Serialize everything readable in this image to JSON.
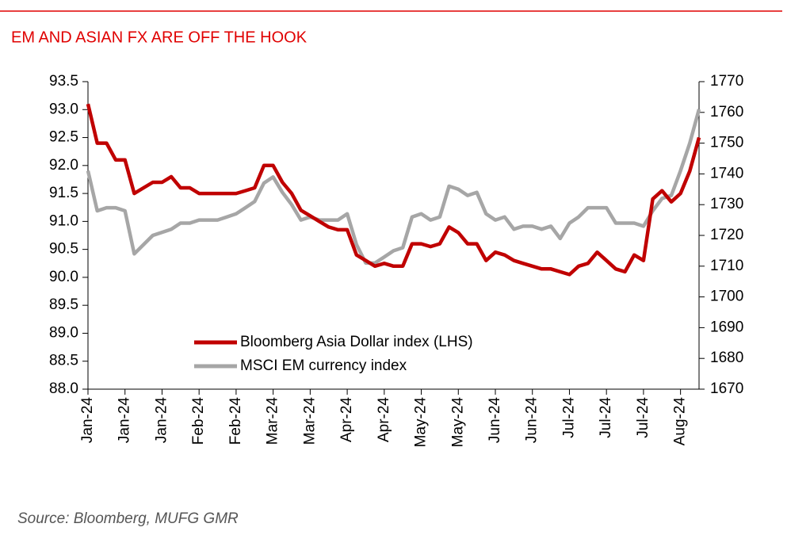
{
  "chart_data": {
    "type": "line",
    "title": "EM AND ASIAN FX ARE OFF THE HOOK",
    "source": "Source: Bloomberg, MUFG GMR",
    "categories": [
      "Jan-24",
      null,
      null,
      null,
      "Jan-24",
      null,
      null,
      null,
      "Jan-24",
      null,
      null,
      null,
      "Feb-24",
      null,
      null,
      null,
      "Feb-24",
      null,
      null,
      null,
      "Mar-24",
      null,
      null,
      null,
      "Mar-24",
      null,
      null,
      null,
      "Apr-24",
      null,
      null,
      null,
      "Apr-24",
      null,
      null,
      null,
      "May-24",
      null,
      null,
      null,
      "May-24",
      null,
      null,
      null,
      "Jun-24",
      null,
      null,
      null,
      "Jun-24",
      null,
      null,
      null,
      "Jul-24",
      null,
      null,
      null,
      "Jul-24",
      null,
      null,
      null,
      "Jul-24",
      null,
      null,
      null,
      "Aug-24",
      null,
      null
    ],
    "series": [
      {
        "name": "Bloomberg Asia Dollar index (LHS)",
        "color": "#c00000",
        "axis": "y",
        "values": [
          93.1,
          92.4,
          92.4,
          92.1,
          92.1,
          91.5,
          91.6,
          91.7,
          91.7,
          91.8,
          91.6,
          91.6,
          91.5,
          91.5,
          91.5,
          91.5,
          91.5,
          91.55,
          91.6,
          92.0,
          92.0,
          91.7,
          91.5,
          91.2,
          91.1,
          91.0,
          90.9,
          90.85,
          90.85,
          90.4,
          90.3,
          90.2,
          90.25,
          90.2,
          90.2,
          90.6,
          90.6,
          90.55,
          90.6,
          90.9,
          90.8,
          90.6,
          90.6,
          90.3,
          90.45,
          90.4,
          90.3,
          90.25,
          90.2,
          90.15,
          90.15,
          90.1,
          90.05,
          90.2,
          90.25,
          90.45,
          90.3,
          90.15,
          90.1,
          90.4,
          90.3,
          91.4,
          91.55,
          91.35,
          91.5,
          91.9,
          92.5
        ]
      },
      {
        "name": "MSCI EM currency index",
        "color": "#a6a6a6",
        "axis": "y2",
        "values": [
          1741,
          1728,
          1729,
          1729,
          1728,
          1714,
          1717,
          1720,
          1721,
          1722,
          1724,
          1724,
          1725,
          1725,
          1725,
          1726,
          1727,
          1729,
          1731,
          1737,
          1739,
          1734,
          1730,
          1725,
          1726,
          1725,
          1725,
          1725,
          1727,
          1717,
          1711,
          1711,
          1713,
          1715,
          1716,
          1726,
          1727,
          1725,
          1726,
          1736,
          1735,
          1733,
          1734,
          1727,
          1725,
          1726,
          1722,
          1723,
          1723,
          1722,
          1723,
          1719,
          1724,
          1726,
          1729,
          1729,
          1729,
          1724,
          1724,
          1724,
          1723,
          1728,
          1732,
          1733,
          1741,
          1750,
          1761
        ]
      }
    ],
    "ylim": [
      88,
      93.5
    ],
    "yticks": [
      {
        "value": 88,
        "label": "88.0"
      },
      88.5,
      {
        "value": 89,
        "label": "89.0"
      },
      89.5,
      {
        "value": 90,
        "label": "90.0"
      },
      90.5,
      {
        "value": 91,
        "label": "91.0"
      },
      91.5,
      {
        "value": 92,
        "label": "92.0"
      },
      92.5,
      {
        "value": 93,
        "label": "93.0"
      },
      93.5
    ],
    "y2lim": [
      1670,
      1770
    ],
    "y2ticks": [
      1670,
      1680,
      1690,
      1700,
      1710,
      1720,
      1730,
      1740,
      1750,
      1760,
      1770
    ]
  }
}
